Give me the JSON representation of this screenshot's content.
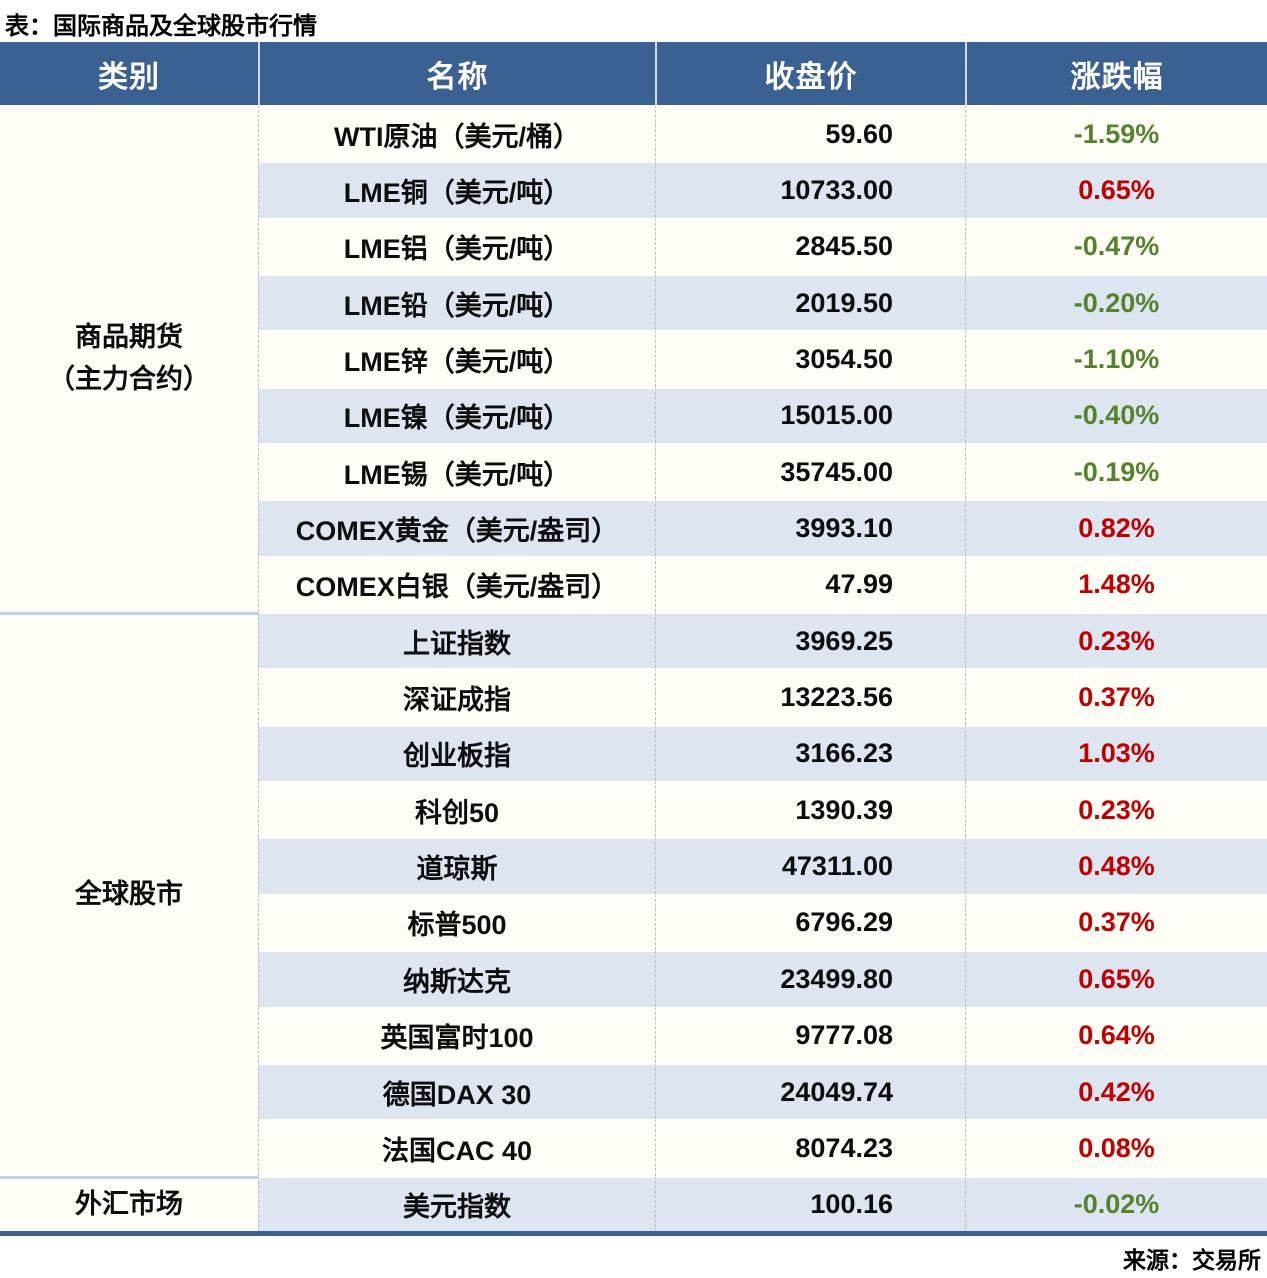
{
  "title": "表：国际商品及全球股市行情",
  "source": "来源：交易所",
  "colors": {
    "header_bg": "#3A6191",
    "row_bg": "#FFFEF6",
    "row_alt_bg": "#DCE5F0",
    "up_red": "#C00000",
    "down_green": "#56822E",
    "bottom_rule": "#3A6191"
  },
  "table": {
    "headers": [
      "类别",
      "名称",
      "收盘价",
      "涨跌幅"
    ],
    "groups": [
      {
        "lines": [
          "商品期货",
          "（主力合约）"
        ],
        "rows": [
          {
            "name": "WTI原油（美元/桶）",
            "close": "59.60",
            "change": "-1.59%",
            "direction": "down"
          },
          {
            "name": "LME铜（美元/吨）",
            "close": "10733.00",
            "change": "0.65%",
            "direction": "up"
          },
          {
            "name": "LME铝（美元/吨）",
            "close": "2845.50",
            "change": "-0.47%",
            "direction": "down"
          },
          {
            "name": "LME铅（美元/吨）",
            "close": "2019.50",
            "change": "-0.20%",
            "direction": "down"
          },
          {
            "name": "LME锌（美元/吨）",
            "close": "3054.50",
            "change": "-1.10%",
            "direction": "down"
          },
          {
            "name": "LME镍（美元/吨）",
            "close": "15015.00",
            "change": "-0.40%",
            "direction": "down"
          },
          {
            "name": "LME锡（美元/吨）",
            "close": "35745.00",
            "change": "-0.19%",
            "direction": "down"
          },
          {
            "name": "COMEX黄金（美元/盎司）",
            "close": "3993.10",
            "change": "0.82%",
            "direction": "up"
          },
          {
            "name": "COMEX白银（美元/盎司）",
            "close": "47.99",
            "change": "1.48%",
            "direction": "up"
          }
        ]
      },
      {
        "lines": [
          "全球股市"
        ],
        "rows": [
          {
            "name": "上证指数",
            "close": "3969.25",
            "change": "0.23%",
            "direction": "up"
          },
          {
            "name": "深证成指",
            "close": "13223.56",
            "change": "0.37%",
            "direction": "up"
          },
          {
            "name": "创业板指",
            "close": "3166.23",
            "change": "1.03%",
            "direction": "up"
          },
          {
            "name": "科创50",
            "close": "1390.39",
            "change": "0.23%",
            "direction": "up"
          },
          {
            "name": "道琼斯",
            "close": "47311.00",
            "change": "0.48%",
            "direction": "up"
          },
          {
            "name": "标普500",
            "close": "6796.29",
            "change": "0.37%",
            "direction": "up"
          },
          {
            "name": "纳斯达克",
            "close": "23499.80",
            "change": "0.65%",
            "direction": "up"
          },
          {
            "name": "英国富时100",
            "close": "9777.08",
            "change": "0.64%",
            "direction": "up"
          },
          {
            "name": "德国DAX 30",
            "close": "24049.74",
            "change": "0.42%",
            "direction": "up"
          },
          {
            "name": "法国CAC 40",
            "close": "8074.23",
            "change": "0.08%",
            "direction": "up"
          }
        ]
      },
      {
        "lines": [
          "外汇市场"
        ],
        "rows": [
          {
            "name": "美元指数",
            "close": "100.16",
            "change": "-0.02%",
            "direction": "down"
          }
        ]
      }
    ]
  },
  "chart_data": {
    "type": "table",
    "title": "表：国际商品及全球股市行情",
    "columns": [
      "类别",
      "名称",
      "收盘价",
      "涨跌幅"
    ],
    "rows": [
      [
        "商品期货（主力合约）",
        "WTI原油（美元/桶）",
        "59.60",
        "-1.59%"
      ],
      [
        "商品期货（主力合约）",
        "LME铜（美元/吨）",
        "10733.00",
        "0.65%"
      ],
      [
        "商品期货（主力合约）",
        "LME铝（美元/吨）",
        "2845.50",
        "-0.47%"
      ],
      [
        "商品期货（主力合约）",
        "LME铅（美元/吨）",
        "2019.50",
        "-0.20%"
      ],
      [
        "商品期货（主力合约）",
        "LME锌（美元/吨）",
        "3054.50",
        "-1.10%"
      ],
      [
        "商品期货（主力合约）",
        "LME镍（美元/吨）",
        "15015.00",
        "-0.40%"
      ],
      [
        "商品期货（主力合约）",
        "LME锡（美元/吨）",
        "35745.00",
        "-0.19%"
      ],
      [
        "商品期货（主力合约）",
        "COMEX黄金（美元/盎司）",
        "3993.10",
        "0.82%"
      ],
      [
        "商品期货（主力合约）",
        "COMEX白银（美元/盎司）",
        "47.99",
        "1.48%"
      ],
      [
        "全球股市",
        "上证指数",
        "3969.25",
        "0.23%"
      ],
      [
        "全球股市",
        "深证成指",
        "13223.56",
        "0.37%"
      ],
      [
        "全球股市",
        "创业板指",
        "3166.23",
        "1.03%"
      ],
      [
        "全球股市",
        "科创50",
        "1390.39",
        "0.23%"
      ],
      [
        "全球股市",
        "道琼斯",
        "47311.00",
        "0.48%"
      ],
      [
        "全球股市",
        "标普500",
        "6796.29",
        "0.37%"
      ],
      [
        "全球股市",
        "纳斯达克",
        "23499.80",
        "0.65%"
      ],
      [
        "全球股市",
        "英国富时100",
        "9777.08",
        "0.64%"
      ],
      [
        "全球股市",
        "德国DAX 30",
        "24049.74",
        "0.42%"
      ],
      [
        "全球股市",
        "法国CAC 40",
        "8074.23",
        "0.08%"
      ],
      [
        "外汇市场",
        "美元指数",
        "100.16",
        "-0.02%"
      ]
    ],
    "legend_note": "red = rise (涨), green = fall (跌)",
    "source": "来源：交易所"
  }
}
